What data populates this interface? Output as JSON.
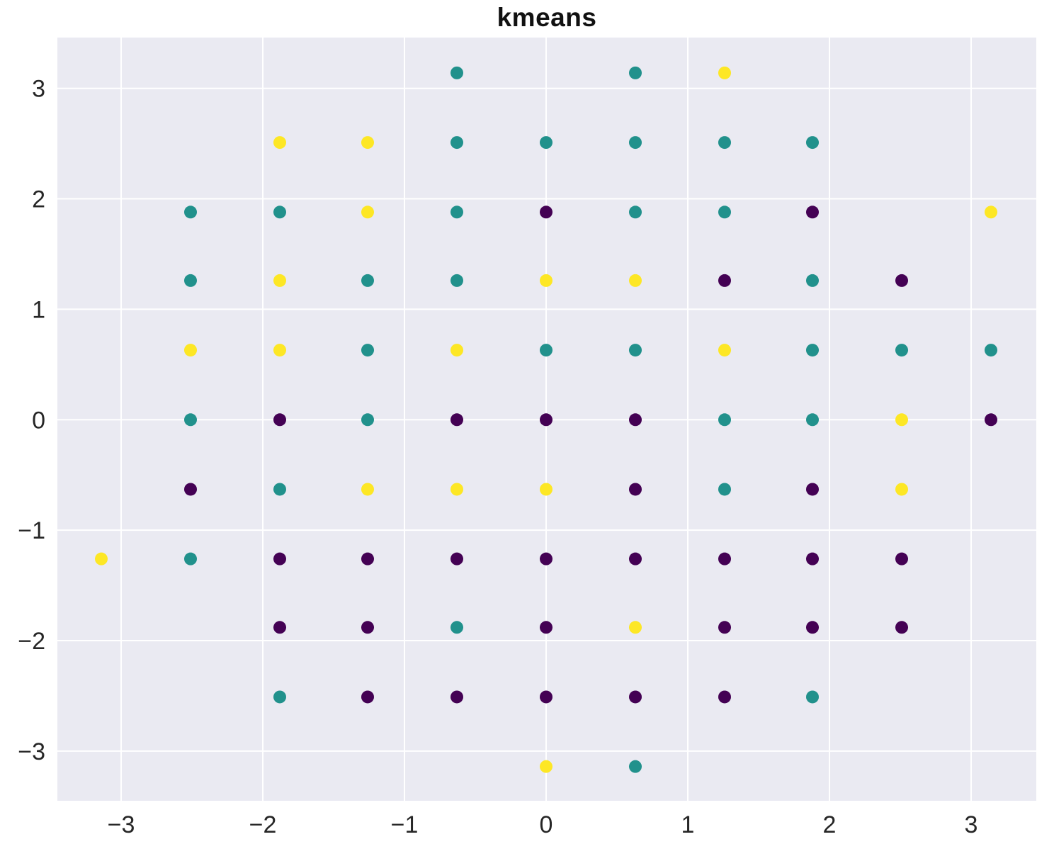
{
  "figure": {
    "title": "kmeans"
  },
  "chart_data": {
    "type": "scatter",
    "title": "kmeans",
    "xlabel": "",
    "ylabel": "",
    "grid": true,
    "legend": "none",
    "background_color": "#eaeaf2",
    "gridline_color": "#ffffff",
    "tick_label_color": "#262626",
    "xlim": [
      -3.45,
      3.46
    ],
    "ylim": [
      -3.45,
      3.46
    ],
    "xticks": [
      {
        "value": -3,
        "label": "−3"
      },
      {
        "value": -2,
        "label": "−2"
      },
      {
        "value": -1,
        "label": "−1"
      },
      {
        "value": 0,
        "label": "0"
      },
      {
        "value": 1,
        "label": "1"
      },
      {
        "value": 2,
        "label": "2"
      },
      {
        "value": 3,
        "label": "3"
      }
    ],
    "yticks": [
      {
        "value": 3,
        "label": "3"
      },
      {
        "value": 2,
        "label": "2"
      },
      {
        "value": 1,
        "label": "1"
      },
      {
        "value": 0,
        "label": "0"
      },
      {
        "value": -1,
        "label": "−1"
      },
      {
        "value": -2,
        "label": "−2"
      },
      {
        "value": -3,
        "label": "−3"
      }
    ],
    "marker": {
      "shape": "circle",
      "radius_px": 9
    },
    "series": [
      {
        "name": "cluster-0-purple",
        "color": "#440154",
        "points": [
          [
            0,
            1.88
          ],
          [
            1.88,
            1.88
          ],
          [
            1.26,
            1.26
          ],
          [
            2.51,
            1.26
          ],
          [
            -1.88,
            0
          ],
          [
            -0.63,
            0
          ],
          [
            0,
            0
          ],
          [
            0.63,
            0
          ],
          [
            3.14,
            0
          ],
          [
            -2.51,
            -0.63
          ],
          [
            0.63,
            -0.63
          ],
          [
            1.88,
            -0.63
          ],
          [
            -1.88,
            -1.26
          ],
          [
            -1.26,
            -1.26
          ],
          [
            -0.63,
            -1.26
          ],
          [
            0,
            -1.26
          ],
          [
            0.63,
            -1.26
          ],
          [
            1.26,
            -1.26
          ],
          [
            1.88,
            -1.26
          ],
          [
            2.51,
            -1.26
          ],
          [
            -1.88,
            -1.88
          ],
          [
            -1.26,
            -1.88
          ],
          [
            0,
            -1.88
          ],
          [
            1.26,
            -1.88
          ],
          [
            1.88,
            -1.88
          ],
          [
            2.51,
            -1.88
          ],
          [
            -1.26,
            -2.51
          ],
          [
            -0.63,
            -2.51
          ],
          [
            0,
            -2.51
          ],
          [
            0.63,
            -2.51
          ],
          [
            1.26,
            -2.51
          ]
        ]
      },
      {
        "name": "cluster-1-teal",
        "color": "#21918c",
        "points": [
          [
            -0.63,
            3.14
          ],
          [
            0.63,
            3.14
          ],
          [
            -0.63,
            2.51
          ],
          [
            0,
            2.51
          ],
          [
            0.63,
            2.51
          ],
          [
            1.26,
            2.51
          ],
          [
            1.88,
            2.51
          ],
          [
            -2.51,
            1.88
          ],
          [
            -1.88,
            1.88
          ],
          [
            -0.63,
            1.88
          ],
          [
            0.63,
            1.88
          ],
          [
            1.26,
            1.88
          ],
          [
            -2.51,
            1.26
          ],
          [
            -1.26,
            1.26
          ],
          [
            -0.63,
            1.26
          ],
          [
            1.88,
            1.26
          ],
          [
            -1.26,
            0.63
          ],
          [
            0,
            0.63
          ],
          [
            0.63,
            0.63
          ],
          [
            1.88,
            0.63
          ],
          [
            2.51,
            0.63
          ],
          [
            3.14,
            0.63
          ],
          [
            -2.51,
            0
          ],
          [
            -1.26,
            0
          ],
          [
            1.26,
            0
          ],
          [
            1.88,
            0
          ],
          [
            -1.88,
            -0.63
          ],
          [
            1.26,
            -0.63
          ],
          [
            -2.51,
            -1.26
          ],
          [
            -0.63,
            -1.88
          ],
          [
            -1.88,
            -2.51
          ],
          [
            1.88,
            -2.51
          ],
          [
            0.63,
            -3.14
          ]
        ]
      },
      {
        "name": "cluster-2-yellow",
        "color": "#fde725",
        "points": [
          [
            1.26,
            3.14
          ],
          [
            -1.88,
            2.51
          ],
          [
            -1.26,
            2.51
          ],
          [
            -1.26,
            1.88
          ],
          [
            3.14,
            1.88
          ],
          [
            -1.88,
            1.26
          ],
          [
            0,
            1.26
          ],
          [
            0.63,
            1.26
          ],
          [
            -2.51,
            0.63
          ],
          [
            -1.88,
            0.63
          ],
          [
            -0.63,
            0.63
          ],
          [
            1.26,
            0.63
          ],
          [
            2.51,
            0
          ],
          [
            -1.26,
            -0.63
          ],
          [
            -0.63,
            -0.63
          ],
          [
            0,
            -0.63
          ],
          [
            2.51,
            -0.63
          ],
          [
            -3.14,
            -1.26
          ],
          [
            0.63,
            -1.88
          ],
          [
            0,
            -3.14
          ]
        ]
      }
    ]
  }
}
